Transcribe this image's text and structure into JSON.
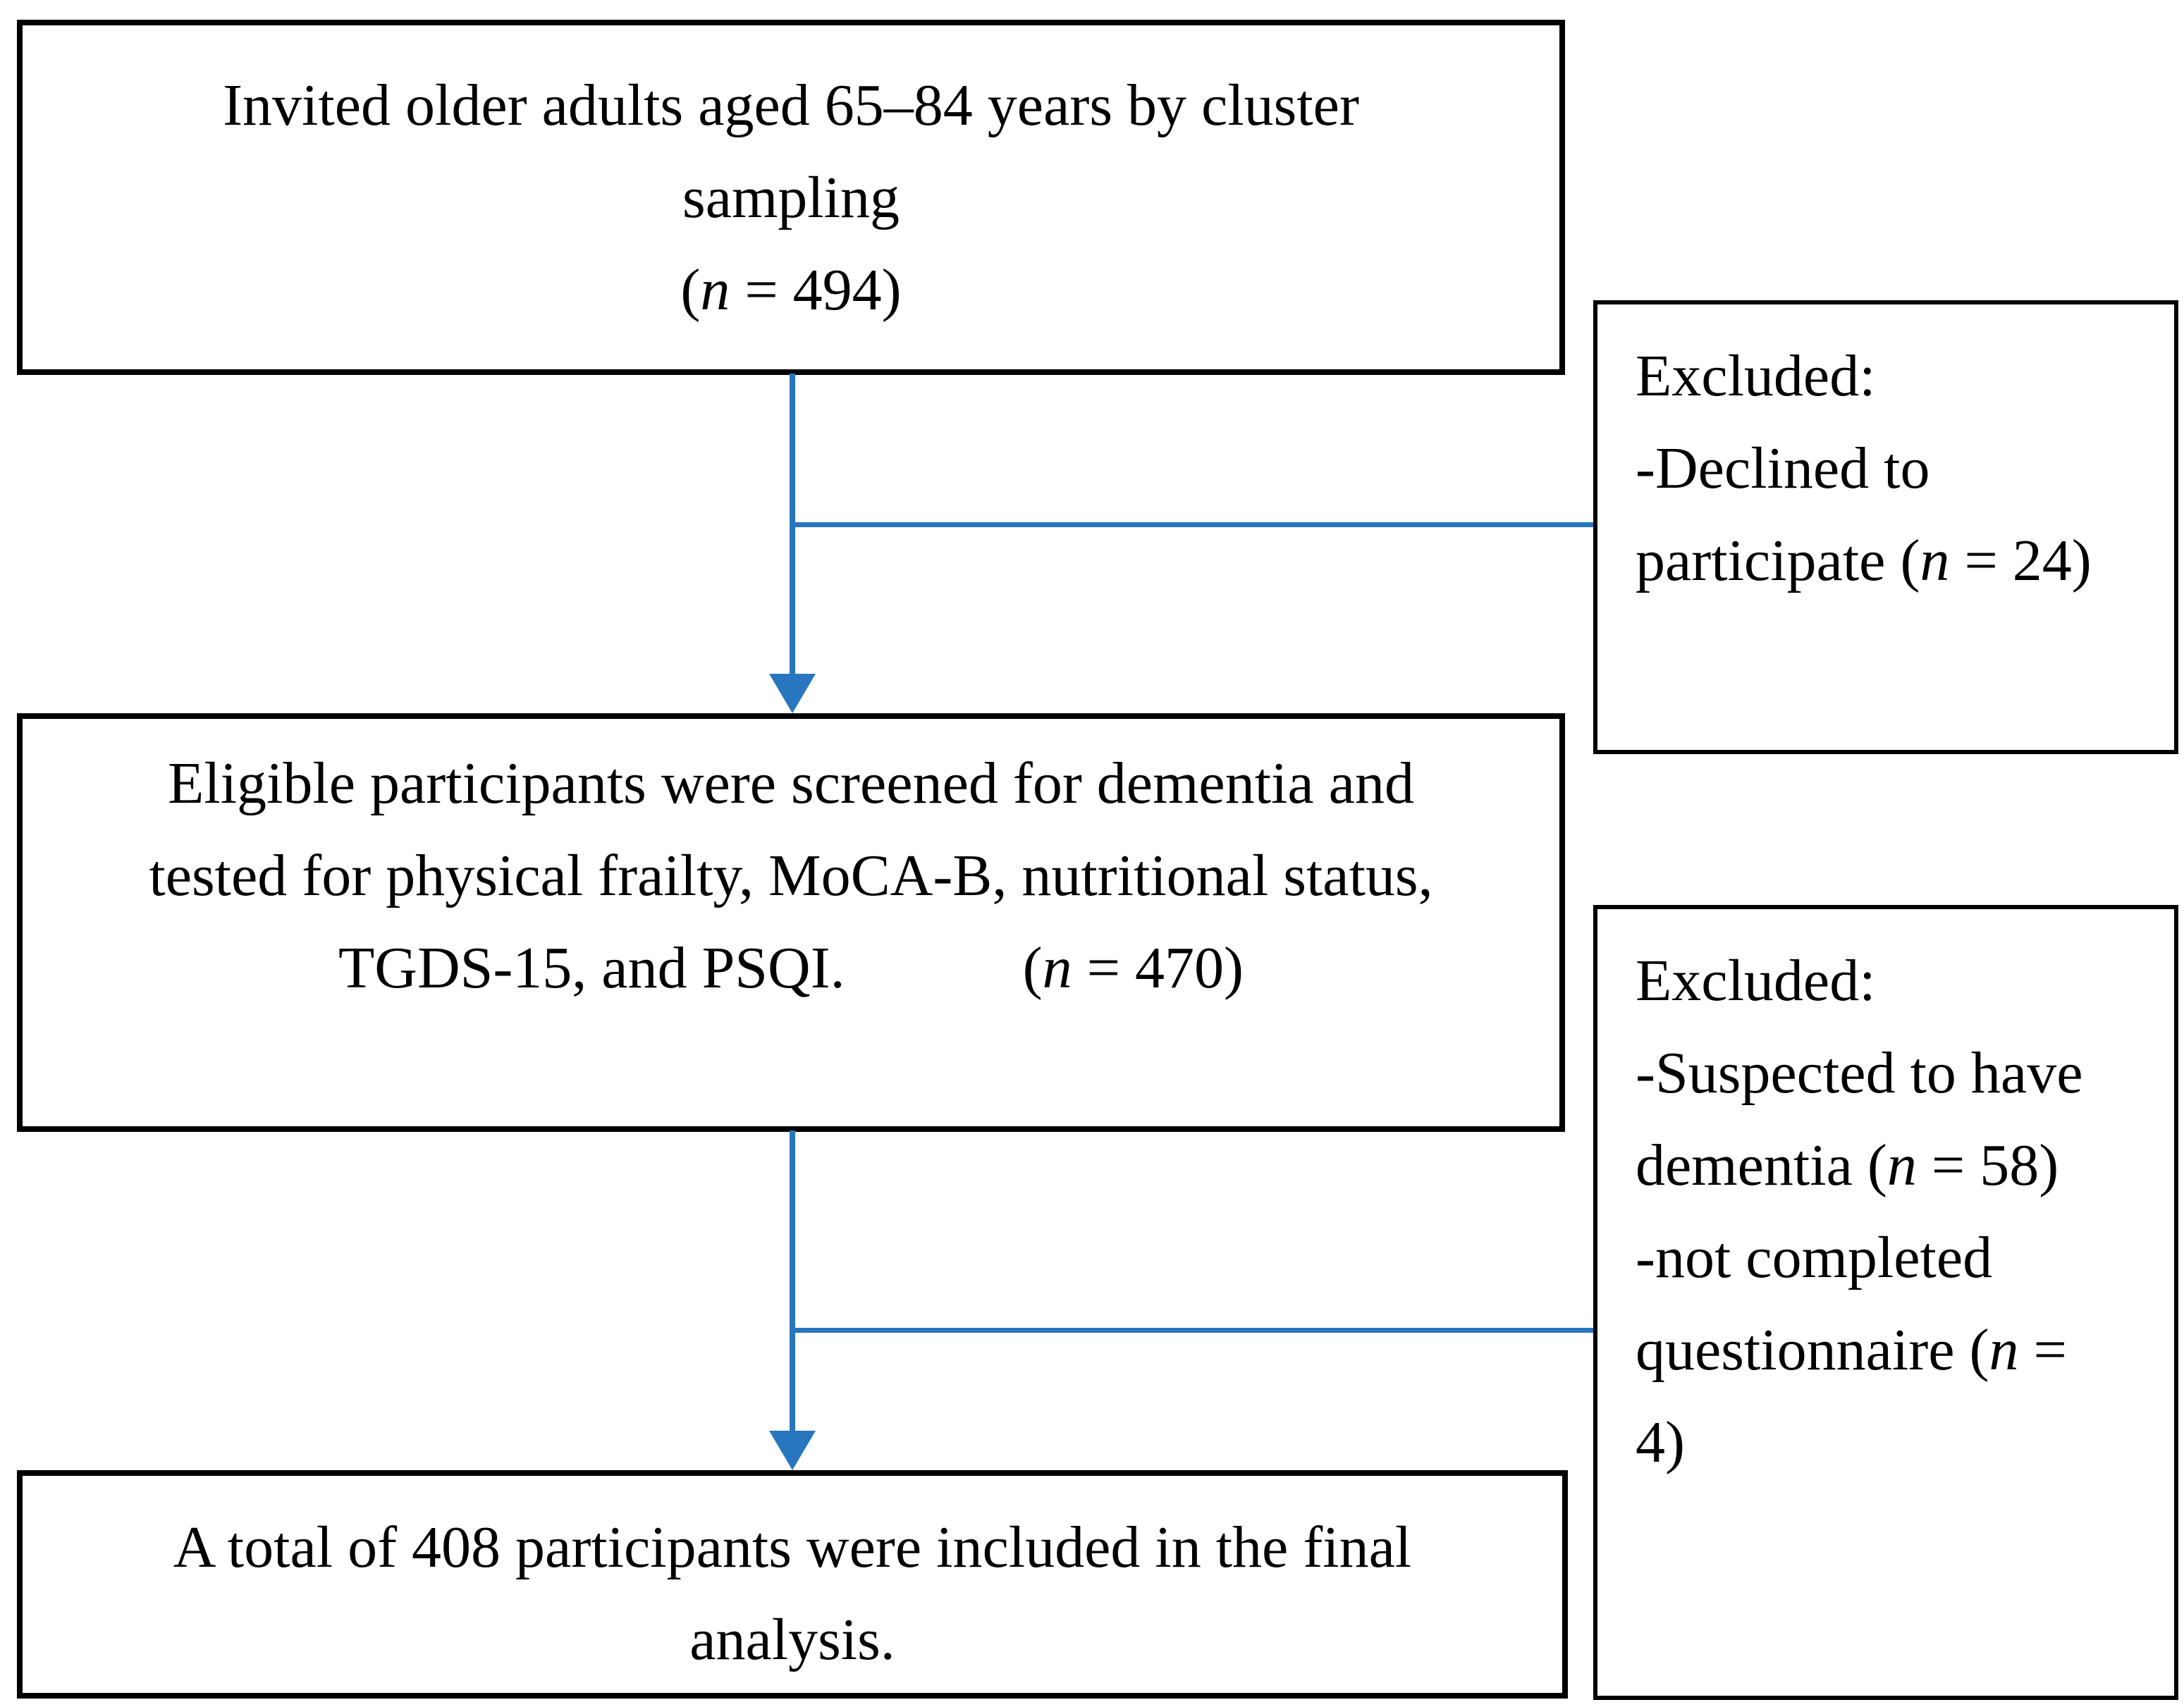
{
  "figure": {
    "type": "participant-flow-diagram",
    "description_visible_only": "Study participant inclusion/exclusion flowchart"
  },
  "colors": {
    "background": "#ffffff",
    "text": "#000000",
    "box_border": "#000000",
    "arrow": "#2776BE"
  },
  "boxes": {
    "invited": {
      "lines": [
        [
          {
            "t": "Invited older adults aged 65–84 years by cluster"
          }
        ],
        [
          {
            "t": "sampling"
          }
        ],
        [
          {
            "t": "("
          },
          {
            "t": "n",
            "i": true
          },
          {
            "t": " = 494)"
          }
        ]
      ]
    },
    "excluded_declined": {
      "lines": [
        [
          {
            "t": "Excluded:"
          }
        ],
        [
          {
            "t": "-Declined to"
          }
        ],
        [
          {
            "t": "participate ("
          },
          {
            "t": "n",
            "i": true
          },
          {
            "t": " = 24)"
          }
        ]
      ]
    },
    "eligible": {
      "lines": [
        [
          {
            "t": "Eligible participants were screened for dementia and"
          }
        ],
        [
          {
            "t": "tested for physical frailty, MoCA-B, nutritional status,"
          }
        ],
        [
          {
            "t": "TGDS-15, and PSQI.            ("
          },
          {
            "t": "n",
            "i": true
          },
          {
            "t": " = 470)"
          }
        ]
      ]
    },
    "excluded_dementia": {
      "lines": [
        [
          {
            "t": "Excluded:"
          }
        ],
        [
          {
            "t": "-Suspected to have"
          }
        ],
        [
          {
            "t": "dementia ("
          },
          {
            "t": "n",
            "i": true
          },
          {
            "t": " = 58)"
          }
        ],
        [
          {
            "t": "-not completed"
          }
        ],
        [
          {
            "t": "questionnaire ("
          },
          {
            "t": "n",
            "i": true
          },
          {
            "t": " ="
          }
        ],
        [
          {
            "t": "4)"
          }
        ]
      ]
    },
    "final": {
      "lines": [
        [
          {
            "t": "A total of 408 participants were included in the final"
          }
        ],
        [
          {
            "t": "analysis."
          }
        ]
      ]
    }
  }
}
